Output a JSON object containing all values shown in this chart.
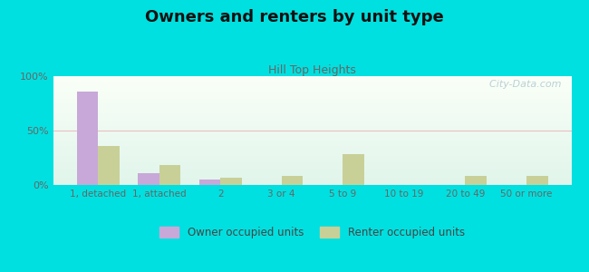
{
  "title": "Owners and renters by unit type",
  "subtitle": "Hill Top Heights",
  "categories": [
    "1, detached",
    "1, attached",
    "2",
    "3 or 4",
    "5 to 9",
    "10 to 19",
    "20 to 49",
    "50 or more"
  ],
  "owner_values": [
    86,
    11,
    5,
    0,
    0,
    0,
    0,
    0
  ],
  "renter_values": [
    36,
    18,
    7,
    8,
    28,
    0,
    8,
    8
  ],
  "owner_color": "#c8a8d8",
  "renter_color": "#c8d098",
  "background_outer": "#00e0e0",
  "ylim": [
    0,
    100
  ],
  "yticks": [
    0,
    50,
    100
  ],
  "ytick_labels": [
    "0%",
    "50%",
    "100%"
  ],
  "bar_width": 0.35,
  "title_fontsize": 13,
  "subtitle_fontsize": 9,
  "legend_owner": "Owner occupied units",
  "legend_renter": "Renter occupied units",
  "watermark": "  City-Data.com"
}
